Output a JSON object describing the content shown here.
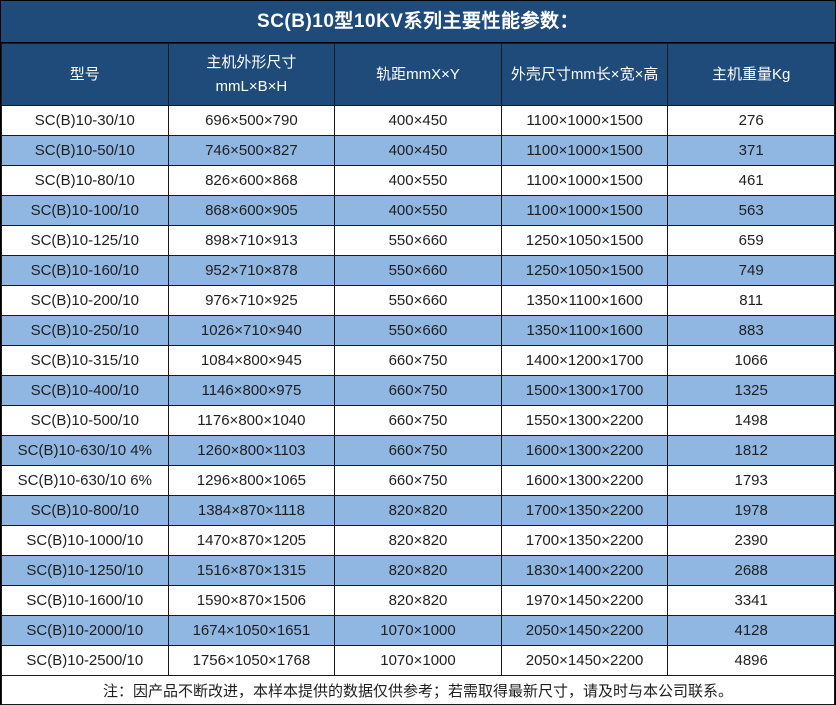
{
  "title": "SC(B)10型10KV系列主要性能参数：",
  "note": "注：因产品不断改进，本样本提供的数据仅供参考；若需取得最新尺寸，请及时与本公司联系。",
  "colors": {
    "header_bg": "#1F4B7A",
    "alt_row_bg": "#90B7E2",
    "border": "#1A1A1A",
    "header_text": "#FFFFFF",
    "body_text": "#1F1F1F"
  },
  "table": {
    "columns": [
      {
        "lines": [
          "型号"
        ]
      },
      {
        "lines": [
          "主机外形尺寸",
          "mmL×B×H"
        ]
      },
      {
        "lines": [
          "轨距mmX×Y"
        ]
      },
      {
        "lines": [
          "外壳尺寸mm长×宽×高"
        ]
      },
      {
        "lines": [
          "主机重量Kg"
        ]
      }
    ],
    "rows": [
      [
        "SC(B)10-30/10",
        "696×500×790",
        "400×450",
        "1100×1000×1500",
        "276"
      ],
      [
        "SC(B)10-50/10",
        "746×500×827",
        "400×450",
        "1100×1000×1500",
        "371"
      ],
      [
        "SC(B)10-80/10",
        "826×600×868",
        "400×550",
        "1100×1000×1500",
        "461"
      ],
      [
        "SC(B)10-100/10",
        "868×600×905",
        "400×550",
        "1100×1000×1500",
        "563"
      ],
      [
        "SC(B)10-125/10",
        "898×710×913",
        "550×660",
        "1250×1050×1500",
        "659"
      ],
      [
        "SC(B)10-160/10",
        "952×710×878",
        "550×660",
        "1250×1050×1500",
        "749"
      ],
      [
        "SC(B)10-200/10",
        "976×710×925",
        "550×660",
        "1350×1100×1600",
        "811"
      ],
      [
        "SC(B)10-250/10",
        "1026×710×940",
        "550×660",
        "1350×1100×1600",
        "883"
      ],
      [
        "SC(B)10-315/10",
        "1084×800×945",
        "660×750",
        "1400×1200×1700",
        "1066"
      ],
      [
        "SC(B)10-400/10",
        "1146×800×975",
        "660×750",
        "1500×1300×1700",
        "1325"
      ],
      [
        "SC(B)10-500/10",
        "1176×800×1040",
        "660×750",
        "1550×1300×2200",
        "1498"
      ],
      [
        "SC(B)10-630/10 4%",
        "1260×800×1103",
        "660×750",
        "1600×1300×2200",
        "1812"
      ],
      [
        "SC(B)10-630/10 6%",
        "1296×800×1065",
        "660×750",
        "1600×1300×2200",
        "1793"
      ],
      [
        "SC(B)10-800/10",
        "1384×870×1118",
        "820×820",
        "1700×1350×2200",
        "1978"
      ],
      [
        "SC(B)10-1000/10",
        "1470×870×1205",
        "820×820",
        "1700×1350×2200",
        "2390"
      ],
      [
        "SC(B)10-1250/10",
        "1516×870×1315",
        "820×820",
        "1830×1400×2200",
        "2688"
      ],
      [
        "SC(B)10-1600/10",
        "1590×870×1506",
        "820×820",
        "1970×1450×2200",
        "3341"
      ],
      [
        "SC(B)10-2000/10",
        "1674×1050×1651",
        "1070×1000",
        "2050×1450×2200",
        "4128"
      ],
      [
        "SC(B)10-2500/10",
        "1756×1050×1768",
        "1070×1000",
        "2050×1450×2200",
        "4896"
      ]
    ]
  }
}
